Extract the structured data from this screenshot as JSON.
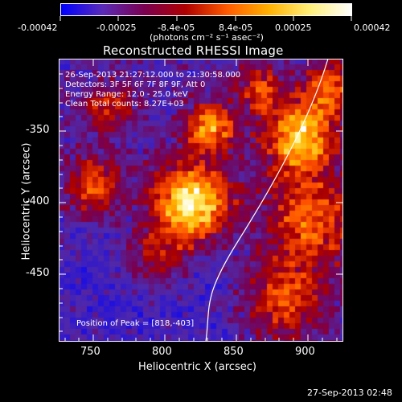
{
  "colorbar": {
    "ticks": [
      "-0.00042",
      "-0.00025",
      "-8.4e-05",
      "8.4e-05",
      "0.00025",
      "0.00042"
    ],
    "units_label": "(photons cm⁻² s⁻¹ asec⁻²)",
    "colors": [
      "#0000ff",
      "#5a2bb8",
      "#7a0050",
      "#b00000",
      "#ff5a00",
      "#ffb000",
      "#fff07a",
      "#ffffff"
    ]
  },
  "plot": {
    "title": "Reconstructed RHESSI Image",
    "x_axis": {
      "label": "Heliocentric X (arcsec)",
      "ticks": [
        "750",
        "800",
        "850",
        "900"
      ]
    },
    "y_axis": {
      "label": "Heliocentric Y (arcsec)",
      "ticks": [
        "-350",
        "-400",
        "-450"
      ]
    },
    "info_lines": [
      "26-Sep-2013 21:27:12.000 to 21:30:58.000",
      "Detectors: 3F 5F 6F 7F 8F 9F, Att 0",
      "Energy Range: 12.0 - 25.0 keV",
      "Clean     Total counts: 8.27E+03"
    ],
    "peak_label": "Position of Peak = [818,-403]"
  },
  "footer": {
    "timestamp": "27-Sep-2013 02:48"
  }
}
